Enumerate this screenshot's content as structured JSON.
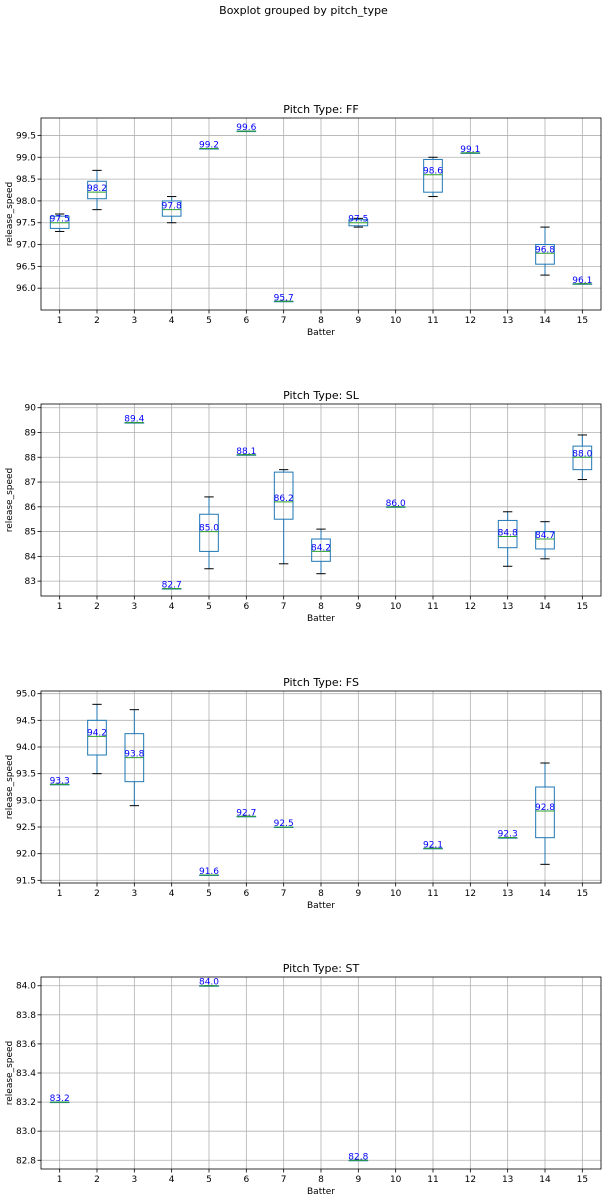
{
  "figure": {
    "suptitle": "Boxplot grouped by pitch_type"
  },
  "colors": {
    "box": "#1f77b4",
    "median": "#2ca02c",
    "label": "#0000ff",
    "grid": "#b0b0b0"
  },
  "chart_data": [
    {
      "type": "box",
      "title": "Pitch Type: FF",
      "xlabel": "Batter",
      "ylabel": "release_speed",
      "categories": [
        "1",
        "2",
        "3",
        "4",
        "5",
        "6",
        "7",
        "8",
        "9",
        "10",
        "11",
        "12",
        "13",
        "14",
        "15"
      ],
      "ylim": [
        95.5,
        99.9
      ],
      "yticks": [
        "96.0",
        "96.5",
        "97.0",
        "97.5",
        "98.0",
        "98.5",
        "99.0",
        "99.5"
      ],
      "grid": true,
      "boxes": [
        {
          "x": "1",
          "whislo": 97.3,
          "q1": 97.37,
          "med": 97.5,
          "q3": 97.65,
          "whishi": 97.7,
          "label": "97.5"
        },
        {
          "x": "2",
          "whislo": 97.8,
          "q1": 98.05,
          "med": 98.2,
          "q3": 98.45,
          "whishi": 98.7,
          "label": "98.2"
        },
        {
          "x": "4",
          "whislo": 97.5,
          "q1": 97.65,
          "med": 97.8,
          "q3": 98.0,
          "whishi": 98.1,
          "label": "97.8"
        },
        {
          "x": "5",
          "whislo": 99.2,
          "q1": 99.2,
          "med": 99.2,
          "q3": 99.2,
          "whishi": 99.2,
          "label": "99.2"
        },
        {
          "x": "6",
          "whislo": 99.6,
          "q1": 99.6,
          "med": 99.6,
          "q3": 99.6,
          "whishi": 99.6,
          "label": "99.6"
        },
        {
          "x": "7",
          "whislo": 95.7,
          "q1": 95.7,
          "med": 95.7,
          "q3": 95.7,
          "whishi": 95.7,
          "label": "95.7"
        },
        {
          "x": "9",
          "whislo": 97.4,
          "q1": 97.43,
          "med": 97.5,
          "q3": 97.57,
          "whishi": 97.6,
          "label": "97.5"
        },
        {
          "x": "11",
          "whislo": 98.1,
          "q1": 98.2,
          "med": 98.6,
          "q3": 98.95,
          "whishi": 99.0,
          "label": "98.6"
        },
        {
          "x": "12",
          "whislo": 99.1,
          "q1": 99.1,
          "med": 99.1,
          "q3": 99.1,
          "whishi": 99.1,
          "label": "99.1"
        },
        {
          "x": "14",
          "whislo": 96.3,
          "q1": 96.55,
          "med": 96.8,
          "q3": 97.0,
          "whishi": 97.4,
          "label": "96.8"
        },
        {
          "x": "15",
          "whislo": 96.1,
          "q1": 96.1,
          "med": 96.1,
          "q3": 96.1,
          "whishi": 96.1,
          "label": "96.1"
        }
      ]
    },
    {
      "type": "box",
      "title": "Pitch Type: SL",
      "xlabel": "Batter",
      "ylabel": "release_speed",
      "categories": [
        "1",
        "2",
        "3",
        "4",
        "5",
        "6",
        "7",
        "8",
        "9",
        "10",
        "11",
        "12",
        "13",
        "14",
        "15"
      ],
      "ylim": [
        82.4,
        90.15
      ],
      "yticks": [
        "83",
        "84",
        "85",
        "86",
        "87",
        "88",
        "89",
        "90"
      ],
      "grid": true,
      "boxes": [
        {
          "x": "3",
          "whislo": 89.4,
          "q1": 89.4,
          "med": 89.4,
          "q3": 89.4,
          "whishi": 89.4,
          "label": "89.4"
        },
        {
          "x": "4",
          "whislo": 82.7,
          "q1": 82.7,
          "med": 82.7,
          "q3": 82.7,
          "whishi": 82.7,
          "label": "82.7"
        },
        {
          "x": "5",
          "whislo": 83.5,
          "q1": 84.2,
          "med": 85.0,
          "q3": 85.7,
          "whishi": 86.4,
          "label": "85.0"
        },
        {
          "x": "6",
          "whislo": 88.1,
          "q1": 88.1,
          "med": 88.1,
          "q3": 88.1,
          "whishi": 88.1,
          "label": "88.1"
        },
        {
          "x": "7",
          "whislo": 83.7,
          "q1": 85.5,
          "med": 86.2,
          "q3": 87.4,
          "whishi": 87.5,
          "label": "86.2"
        },
        {
          "x": "8",
          "whislo": 83.3,
          "q1": 83.8,
          "med": 84.2,
          "q3": 84.7,
          "whishi": 85.1,
          "label": "84.2"
        },
        {
          "x": "10",
          "whislo": 86.0,
          "q1": 86.0,
          "med": 86.0,
          "q3": 86.0,
          "whishi": 86.0,
          "label": "86.0"
        },
        {
          "x": "13",
          "whislo": 83.6,
          "q1": 84.35,
          "med": 84.8,
          "q3": 85.45,
          "whishi": 85.8,
          "label": "84.8"
        },
        {
          "x": "14",
          "whislo": 83.9,
          "q1": 84.3,
          "med": 84.7,
          "q3": 85.0,
          "whishi": 85.4,
          "label": "84.7"
        },
        {
          "x": "15",
          "whislo": 87.1,
          "q1": 87.5,
          "med": 88.0,
          "q3": 88.45,
          "whishi": 88.9,
          "label": "88.0"
        }
      ]
    },
    {
      "type": "box",
      "title": "Pitch Type: FS",
      "xlabel": "Batter",
      "ylabel": "release_speed",
      "categories": [
        "1",
        "2",
        "3",
        "4",
        "5",
        "6",
        "7",
        "8",
        "9",
        "10",
        "11",
        "12",
        "13",
        "14",
        "15"
      ],
      "ylim": [
        91.45,
        95.05
      ],
      "yticks": [
        "91.5",
        "92.0",
        "92.5",
        "93.0",
        "93.5",
        "94.0",
        "94.5",
        "95.0"
      ],
      "grid": true,
      "boxes": [
        {
          "x": "1",
          "whislo": 93.3,
          "q1": 93.3,
          "med": 93.3,
          "q3": 93.3,
          "whishi": 93.3,
          "label": "93.3"
        },
        {
          "x": "2",
          "whislo": 93.5,
          "q1": 93.85,
          "med": 94.2,
          "q3": 94.5,
          "whishi": 94.8,
          "label": "94.2"
        },
        {
          "x": "3",
          "whislo": 92.9,
          "q1": 93.35,
          "med": 93.8,
          "q3": 94.25,
          "whishi": 94.7,
          "label": "93.8"
        },
        {
          "x": "5",
          "whislo": 91.6,
          "q1": 91.6,
          "med": 91.6,
          "q3": 91.6,
          "whishi": 91.6,
          "label": "91.6"
        },
        {
          "x": "6",
          "whislo": 92.7,
          "q1": 92.7,
          "med": 92.7,
          "q3": 92.7,
          "whishi": 92.7,
          "label": "92.7"
        },
        {
          "x": "7",
          "whislo": 92.5,
          "q1": 92.5,
          "med": 92.5,
          "q3": 92.5,
          "whishi": 92.5,
          "label": "92.5"
        },
        {
          "x": "11",
          "whislo": 92.1,
          "q1": 92.1,
          "med": 92.1,
          "q3": 92.1,
          "whishi": 92.1,
          "label": "92.1"
        },
        {
          "x": "13",
          "whislo": 92.3,
          "q1": 92.3,
          "med": 92.3,
          "q3": 92.3,
          "whishi": 92.3,
          "label": "92.3"
        },
        {
          "x": "14",
          "whislo": 91.8,
          "q1": 92.3,
          "med": 92.8,
          "q3": 93.25,
          "whishi": 93.7,
          "label": "92.8"
        }
      ]
    },
    {
      "type": "box",
      "title": "Pitch Type: ST",
      "xlabel": "Batter",
      "ylabel": "release_speed",
      "categories": [
        "1",
        "2",
        "3",
        "4",
        "5",
        "6",
        "7",
        "8",
        "9",
        "10",
        "11",
        "12",
        "13",
        "14",
        "15"
      ],
      "ylim": [
        82.74,
        84.06
      ],
      "yticks": [
        "82.8",
        "83.0",
        "83.2",
        "83.4",
        "83.6",
        "83.8",
        "84.0"
      ],
      "grid": true,
      "boxes": [
        {
          "x": "1",
          "whislo": 83.2,
          "q1": 83.2,
          "med": 83.2,
          "q3": 83.2,
          "whishi": 83.2,
          "label": "83.2"
        },
        {
          "x": "5",
          "whislo": 84.0,
          "q1": 84.0,
          "med": 84.0,
          "q3": 84.0,
          "whishi": 84.0,
          "label": "84.0"
        },
        {
          "x": "9",
          "whislo": 82.8,
          "q1": 82.8,
          "med": 82.8,
          "q3": 82.8,
          "whishi": 82.8,
          "label": "82.8"
        }
      ]
    }
  ]
}
